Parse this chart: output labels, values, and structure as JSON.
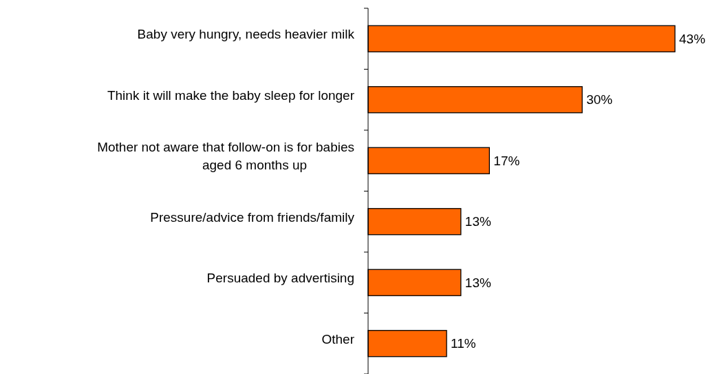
{
  "chart_data": {
    "type": "bar",
    "orientation": "horizontal",
    "categories": [
      "Baby very hungry, needs heavier milk",
      "Think it will make the baby sleep for longer",
      "Mother not aware that follow-on is for babies aged 6 months up",
      "Pressure/advice from friends/family",
      "Persuaded by advertising",
      "Other"
    ],
    "value_labels": [
      "43%",
      "30%",
      "17%",
      "13%",
      "13%",
      "11%"
    ],
    "values": [
      43,
      30,
      17,
      13,
      13,
      11
    ],
    "color": "#ff6600"
  }
}
